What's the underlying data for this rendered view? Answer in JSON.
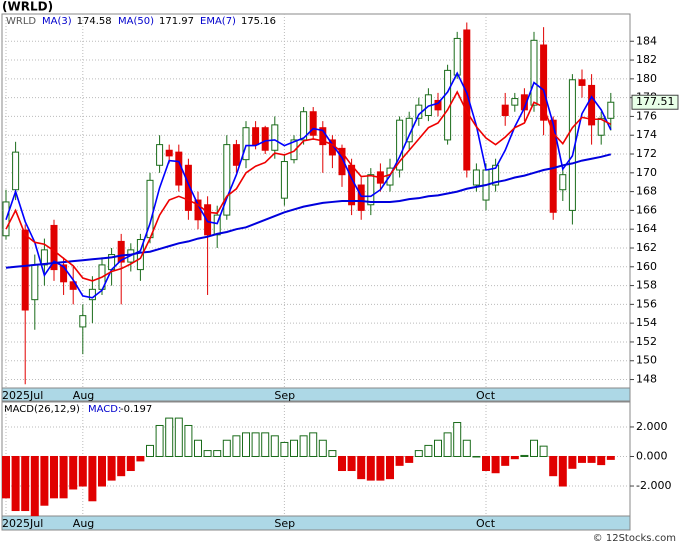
{
  "chart_data": [
    {
      "type": "candlestick",
      "title": "(WRLD)",
      "ticker": "WRLD",
      "categories": [
        "2025Jul",
        null,
        null,
        null,
        null,
        null,
        null,
        null,
        "Aug",
        null,
        null,
        null,
        null,
        null,
        null,
        null,
        null,
        null,
        null,
        null,
        null,
        null,
        null,
        null,
        null,
        null,
        null,
        null,
        null,
        "Sep",
        null,
        null,
        null,
        null,
        null,
        null,
        null,
        null,
        null,
        null,
        null,
        null,
        null,
        null,
        null,
        null,
        null,
        null,
        null,
        null,
        "Oct",
        null,
        null,
        null,
        null,
        null,
        null,
        null,
        null,
        null,
        null,
        null,
        null,
        null
      ],
      "open": [
        163.3,
        168.2,
        163.9,
        156.5,
        160.2,
        164.4,
        160.2,
        158.4,
        153.6,
        156.5,
        157.6,
        159.7,
        162.7,
        160.5,
        159.7,
        163.1,
        170.8,
        172.4,
        172.2,
        170.8,
        167.1,
        166.6,
        163.4,
        165.5,
        173,
        171.4,
        174.8,
        174.8,
        172.4,
        167.3,
        171.4,
        173.5,
        176.5,
        174.8,
        173.5,
        172.6,
        170.8,
        168.7,
        166.6,
        170.1,
        168.7,
        170.3,
        173.3,
        175.8,
        176.1,
        177.7,
        173.5,
        180.4,
        185.2,
        168.7,
        167.1,
        168.7,
        177.2,
        177.2,
        178.3,
        177.2,
        183.6,
        175.6,
        168.2,
        166,
        179.9,
        179.3,
        174,
        175.8
      ],
      "high": [
        168.2,
        173.3,
        164.5,
        161.3,
        163,
        165,
        161,
        160,
        156,
        159,
        161,
        162,
        163.5,
        162.5,
        163.5,
        170,
        174,
        173,
        173,
        171.5,
        168,
        167.5,
        166.5,
        174,
        173.5,
        175.5,
        175.5,
        175,
        176,
        172,
        174,
        177,
        177,
        175.5,
        174,
        173,
        171.5,
        169.5,
        170.5,
        171,
        171.5,
        176,
        176.5,
        178,
        179,
        178.5,
        181.5,
        185,
        186,
        171,
        171,
        171.5,
        178.5,
        178.5,
        179,
        185,
        185.5,
        176,
        170.5,
        180.5,
        181,
        180.5,
        176.5,
        178.5
      ],
      "low": [
        162.9,
        167.1,
        147.5,
        153.3,
        158,
        158.5,
        157,
        156,
        150.7,
        154,
        157,
        158,
        156,
        159.5,
        158.5,
        162.5,
        170,
        171,
        168,
        165,
        164,
        157,
        162,
        165,
        170,
        170.5,
        172.5,
        172,
        171.5,
        166.5,
        171,
        173,
        173.5,
        170,
        170.5,
        168.5,
        165.5,
        165,
        165.5,
        168,
        168,
        169.5,
        172.5,
        175,
        175.5,
        176,
        173,
        180,
        169.5,
        168,
        166,
        168,
        175,
        176.5,
        175.5,
        176.5,
        174,
        165,
        167,
        164.5,
        178,
        173,
        173,
        174.5
      ],
      "close": [
        166.9,
        172.2,
        155.4,
        160.2,
        161.8,
        159.7,
        158.4,
        157.6,
        154.8,
        157.6,
        160.2,
        161.3,
        160.5,
        161.8,
        162.9,
        169.2,
        173,
        171.8,
        168.7,
        166,
        165,
        163.4,
        165.5,
        173,
        170.8,
        174.8,
        173,
        172.4,
        175.1,
        171.2,
        173.5,
        176.5,
        174,
        173,
        171.9,
        169.8,
        166.6,
        166,
        169.8,
        168.9,
        170.5,
        175.6,
        175.8,
        177.2,
        178.3,
        176.7,
        180.9,
        184.3,
        170.3,
        170.3,
        170.3,
        170.8,
        176.1,
        177.9,
        176.7,
        184.1,
        175.6,
        165.8,
        169.8,
        179.9,
        179.3,
        175.1,
        175.8,
        177.51
      ],
      "up_color": "#1a6b1a",
      "down_color": "#e00000",
      "series": [
        {
          "name": "MA(3)",
          "color": "#0000ff",
          "legend_value": 174.58,
          "values": [
            165,
            168,
            164.8,
            162.6,
            159.1,
            160.6,
            160,
            158.6,
            156.9,
            156.7,
            157.5,
            159.7,
            160.7,
            161.2,
            161.7,
            164.6,
            168.4,
            171.3,
            171.2,
            168.8,
            166.6,
            164.8,
            164.6,
            167.3,
            169.8,
            172.9,
            172.9,
            173.4,
            173.5,
            172.9,
            173.3,
            173.7,
            174.7,
            174.5,
            173,
            171.6,
            169.4,
            167.5,
            167.5,
            168.2,
            169.7,
            171.7,
            174,
            176.2,
            177.1,
            177.4,
            178.6,
            180.6,
            178.5,
            175,
            170.3,
            170.5,
            172.4,
            174.9,
            176.9,
            179.6,
            178.8,
            175.2,
            170.4,
            171.8,
            176.3,
            178.1,
            176.7,
            174.58
          ]
        },
        {
          "name": "MA(50)",
          "color": "#0000dd",
          "legend_value": 171.97,
          "values": [
            159.9,
            160,
            160.1,
            160.2,
            160.3,
            160.4,
            160.5,
            160.6,
            160.7,
            160.8,
            160.9,
            161,
            161.2,
            161.3,
            161.5,
            161.6,
            161.9,
            162.2,
            162.5,
            162.7,
            163,
            163.2,
            163.5,
            163.7,
            164,
            164.2,
            164.6,
            165,
            165.4,
            165.8,
            166.1,
            166.4,
            166.6,
            166.8,
            166.9,
            167,
            167,
            167,
            166.9,
            166.9,
            166.9,
            167,
            167.2,
            167.3,
            167.5,
            167.6,
            167.8,
            168,
            168.3,
            168.5,
            168.7,
            169,
            169.2,
            169.5,
            169.7,
            170,
            170.3,
            170.5,
            170.8,
            171,
            171.3,
            171.5,
            171.7,
            171.97
          ]
        },
        {
          "name": "EMA(7)",
          "color": "#ee0000",
          "legend_value": 175.16,
          "values": [
            164,
            166,
            163.4,
            162.6,
            162.4,
            161.7,
            160.9,
            160.1,
            158.8,
            158.5,
            158.9,
            159.5,
            159.8,
            160.3,
            160.9,
            163,
            165.5,
            167.1,
            167.5,
            167.1,
            166.6,
            165.8,
            165.7,
            167.5,
            168.3,
            170,
            170.7,
            171.1,
            172.1,
            171.9,
            172.3,
            173.4,
            173.6,
            173.4,
            173,
            172.2,
            170.8,
            169.6,
            169.7,
            169.5,
            169.8,
            171.2,
            172.4,
            173.6,
            174.8,
            175.3,
            176.7,
            178.6,
            176.5,
            174.9,
            173.7,
            173,
            173.8,
            174.8,
            175.3,
            177.5,
            177,
            174.2,
            173.1,
            174.8,
            175.9,
            175.7,
            175.7,
            175.16
          ]
        }
      ],
      "ylim": [
        147.1,
        186.9
      ],
      "yticks": [
        148,
        150,
        152,
        154,
        156,
        158,
        160,
        162,
        164,
        166,
        168,
        170,
        172,
        174,
        176,
        178,
        180,
        182,
        184
      ],
      "grid": true
    },
    {
      "type": "bar",
      "title": "MACD(26,12,9)",
      "value_name": "MACD:",
      "current": -0.197,
      "categories": [
        "2025Jul",
        null,
        null,
        null,
        null,
        null,
        null,
        null,
        "Aug",
        null,
        null,
        null,
        null,
        null,
        null,
        null,
        null,
        null,
        null,
        null,
        null,
        null,
        null,
        null,
        null,
        null,
        null,
        null,
        null,
        "Sep",
        null,
        null,
        null,
        null,
        null,
        null,
        null,
        null,
        null,
        null,
        null,
        null,
        null,
        null,
        null,
        null,
        null,
        null,
        null,
        null,
        "Oct",
        null,
        null,
        null,
        null,
        null,
        null,
        null,
        null,
        null,
        null,
        null,
        null,
        null
      ],
      "values": [
        -2.8,
        -3.66,
        -3.66,
        -4.0,
        -3.3,
        -2.8,
        -2.8,
        -2.2,
        -2.0,
        -3.0,
        -2.0,
        -1.6,
        -1.3,
        -0.95,
        -0.3,
        0.75,
        2.1,
        2.6,
        2.6,
        2.1,
        1.1,
        0.4,
        0.4,
        1.1,
        1.4,
        1.6,
        1.6,
        1.6,
        1.4,
        0.95,
        1.1,
        1.4,
        1.6,
        1.1,
        0.4,
        -0.95,
        -0.95,
        -1.5,
        -1.6,
        -1.6,
        -1.5,
        -0.6,
        -0.4,
        0.4,
        0.75,
        1.1,
        1.6,
        2.3,
        1.1,
        0,
        -0.95,
        -1.1,
        -0.6,
        -0.15,
        0.07,
        1.1,
        0.7,
        -1.3,
        -2.0,
        -0.8,
        -0.4,
        -0.4,
        -0.55,
        -0.197
      ],
      "up_color": "#1a6b1a",
      "down_color": "#e00000",
      "ylim": [
        -4.03,
        3.69
      ],
      "yticks": [
        {
          "value": -2,
          "label": "-2.000"
        },
        {
          "value": 0,
          "label": "0.000"
        },
        {
          "value": 2,
          "label": "2.000"
        }
      ],
      "grid": true
    }
  ],
  "watermark": "© 12Stocks.com"
}
